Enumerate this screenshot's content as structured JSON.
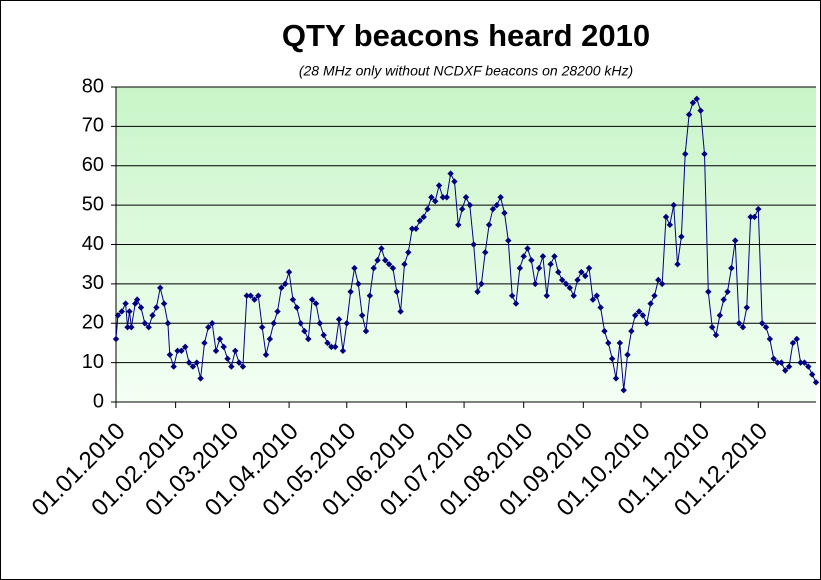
{
  "chart_data": {
    "type": "line",
    "title": "QTY beacons heard 2010",
    "subtitle": "(28 MHz only without NCDXF beacons on 28200 kHz)",
    "color": "#000080",
    "grid": true,
    "xlim": [
      "01.01.2010",
      "31.12.2010"
    ],
    "xticks": [
      "01.01.2010",
      "01.02.2010",
      "01.03.2010",
      "01.04.2010",
      "01.05.2010",
      "01.06.2010",
      "01.07.2010",
      "01.08.2010",
      "01.09.2010",
      "01.10.2010",
      "01.11.2010",
      "01.12.2010"
    ],
    "ylim": [
      0,
      80
    ],
    "yticks": [
      0,
      10,
      20,
      30,
      40,
      50,
      60,
      70,
      80
    ],
    "x": [
      "01.01.2010",
      "02.01.2010",
      "04.01.2010",
      "06.01.2010",
      "07.01.2010",
      "08.01.2010",
      "09.01.2010",
      "11.01.2010",
      "12.01.2010",
      "14.01.2010",
      "16.01.2010",
      "18.01.2010",
      "20.01.2010",
      "22.01.2010",
      "24.01.2010",
      "26.01.2010",
      "28.01.2010",
      "29.01.2010",
      "31.01.2010",
      "02.02.2010",
      "04.02.2010",
      "06.02.2010",
      "08.02.2010",
      "10.02.2010",
      "12.02.2010",
      "14.02.2010",
      "16.02.2010",
      "18.02.2010",
      "20.02.2010",
      "22.02.2010",
      "24.02.2010",
      "26.02.2010",
      "28.02.2010",
      "02.03.2010",
      "04.03.2010",
      "06.03.2010",
      "08.03.2010",
      "10.03.2010",
      "12.03.2010",
      "14.03.2010",
      "16.03.2010",
      "18.03.2010",
      "20.03.2010",
      "22.03.2010",
      "24.03.2010",
      "26.03.2010",
      "28.03.2010",
      "30.03.2010",
      "01.04.2010",
      "03.04.2010",
      "05.04.2010",
      "07.04.2010",
      "09.04.2010",
      "11.04.2010",
      "13.04.2010",
      "15.04.2010",
      "17.04.2010",
      "19.04.2010",
      "21.04.2010",
      "23.04.2010",
      "25.04.2010",
      "27.04.2010",
      "29.04.2010",
      "01.05.2010",
      "03.05.2010",
      "05.05.2010",
      "07.05.2010",
      "09.05.2010",
      "11.05.2010",
      "13.05.2010",
      "15.05.2010",
      "17.05.2010",
      "19.05.2010",
      "21.05.2010",
      "23.05.2010",
      "25.05.2010",
      "27.05.2010",
      "29.05.2010",
      "31.05.2010",
      "02.06.2010",
      "04.06.2010",
      "06.06.2010",
      "08.06.2010",
      "10.06.2010",
      "12.06.2010",
      "14.06.2010",
      "16.06.2010",
      "18.06.2010",
      "20.06.2010",
      "22.06.2010",
      "24.06.2010",
      "26.06.2010",
      "28.06.2010",
      "30.06.2010",
      "02.07.2010",
      "04.07.2010",
      "06.07.2010",
      "08.07.2010",
      "10.07.2010",
      "12.07.2010",
      "14.07.2010",
      "16.07.2010",
      "18.07.2010",
      "20.07.2010",
      "22.07.2010",
      "24.07.2010",
      "26.07.2010",
      "28.07.2010",
      "30.07.2010",
      "01.08.2010",
      "03.08.2010",
      "05.08.2010",
      "07.08.2010",
      "09.08.2010",
      "11.08.2010",
      "13.08.2010",
      "15.08.2010",
      "17.08.2010",
      "19.08.2010",
      "21.08.2010",
      "23.08.2010",
      "25.08.2010",
      "27.08.2010",
      "29.08.2010",
      "31.08.2010",
      "02.09.2010",
      "04.09.2010",
      "06.09.2010",
      "08.09.2010",
      "10.09.2010",
      "12.09.2010",
      "14.09.2010",
      "16.09.2010",
      "18.09.2010",
      "20.09.2010",
      "22.09.2010",
      "24.09.2010",
      "26.09.2010",
      "28.09.2010",
      "30.09.2010",
      "02.10.2010",
      "04.10.2010",
      "06.10.2010",
      "08.10.2010",
      "10.10.2010",
      "12.10.2010",
      "14.10.2010",
      "16.10.2010",
      "18.10.2010",
      "20.10.2010",
      "22.10.2010",
      "24.10.2010",
      "26.10.2010",
      "28.10.2010",
      "30.10.2010",
      "01.11.2010",
      "03.11.2010",
      "05.11.2010",
      "07.11.2010",
      "09.11.2010",
      "11.11.2010",
      "13.11.2010",
      "15.11.2010",
      "17.11.2010",
      "19.11.2010",
      "21.11.2010",
      "23.11.2010",
      "25.11.2010",
      "27.11.2010",
      "29.11.2010",
      "01.12.2010",
      "03.12.2010",
      "05.12.2010",
      "07.12.2010",
      "09.12.2010",
      "11.12.2010",
      "13.12.2010",
      "15.12.2010",
      "17.12.2010",
      "19.12.2010",
      "21.12.2010",
      "23.12.2010",
      "25.12.2010",
      "27.12.2010",
      "29.12.2010",
      "31.12.2010"
    ],
    "values": [
      16,
      22,
      23,
      25,
      19,
      23,
      19,
      25,
      26,
      24,
      20,
      19,
      22,
      24,
      29,
      25,
      20,
      12,
      9,
      13,
      13,
      14,
      10,
      9,
      10,
      6,
      15,
      19,
      20,
      13,
      16,
      14,
      11,
      9,
      13,
      10,
      9,
      27,
      27,
      26,
      27,
      19,
      12,
      16,
      20,
      23,
      29,
      30,
      33,
      26,
      24,
      20,
      18,
      16,
      26,
      25,
      20,
      17,
      15,
      14,
      14,
      21,
      13,
      20,
      28,
      34,
      30,
      22,
      18,
      27,
      34,
      36,
      39,
      36,
      35,
      34,
      28,
      23,
      35,
      38,
      44,
      44,
      46,
      47,
      49,
      52,
      51,
      55,
      52,
      52,
      58,
      56,
      45,
      49,
      52,
      50,
      40,
      28,
      30,
      38,
      45,
      49,
      50,
      52,
      48,
      41,
      27,
      25,
      34,
      37,
      39,
      36,
      30,
      34,
      37,
      27,
      35,
      37,
      33,
      31,
      30,
      29,
      27,
      31,
      33,
      32,
      34,
      26,
      27,
      24,
      18,
      15,
      11,
      6,
      15,
      3,
      12,
      18,
      22,
      23,
      22,
      20,
      25,
      27,
      31,
      30,
      47,
      45,
      50,
      35,
      42,
      63,
      73,
      76,
      77,
      74,
      63,
      28,
      19,
      17,
      22,
      26,
      28,
      34,
      41,
      20,
      19,
      24,
      47,
      47,
      49,
      20,
      19,
      16,
      11,
      10,
      10,
      8,
      9,
      15,
      16,
      10,
      10,
      9,
      7,
      5
    ]
  }
}
